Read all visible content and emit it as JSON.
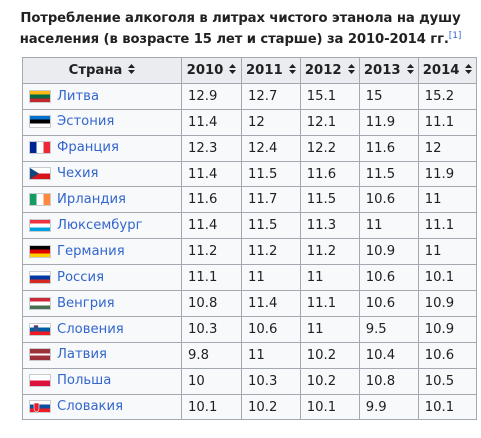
{
  "caption": {
    "title": "Потребление алкоголя в литрах чистого этанола на душу населения (в возрасте 15 лет и старше) за 2010-2014 гг.",
    "ref": "[1]"
  },
  "sort_icon": "sort-arrows-icon",
  "headers": [
    "Страна",
    "2010",
    "2011",
    "2012",
    "2013",
    "2014"
  ],
  "rows": [
    {
      "country": "Литва",
      "flag": "lithuania-flag-icon",
      "values": [
        "12.9",
        "12.7",
        "15.1",
        "15",
        "15.2"
      ]
    },
    {
      "country": "Эстония",
      "flag": "estonia-flag-icon",
      "values": [
        "11.4",
        "12",
        "12.1",
        "11.9",
        "11.1"
      ]
    },
    {
      "country": "Франция",
      "flag": "france-flag-icon",
      "values": [
        "12.3",
        "12.4",
        "12.2",
        "11.6",
        "12"
      ]
    },
    {
      "country": "Чехия",
      "flag": "czechia-flag-icon",
      "values": [
        "11.4",
        "11.5",
        "11.6",
        "11.5",
        "11.9"
      ]
    },
    {
      "country": "Ирландия",
      "flag": "ireland-flag-icon",
      "values": [
        "11.6",
        "11.7",
        "11.5",
        "10.6",
        "11"
      ]
    },
    {
      "country": "Люксембург",
      "flag": "luxembourg-flag-icon",
      "values": [
        "11.4",
        "11.5",
        "11.3",
        "11",
        "11.1"
      ]
    },
    {
      "country": "Германия",
      "flag": "germany-flag-icon",
      "values": [
        "11.2",
        "11.2",
        "11.2",
        "10.9",
        "11"
      ]
    },
    {
      "country": "Россия",
      "flag": "russia-flag-icon",
      "values": [
        "11.1",
        "11",
        "11",
        "10.6",
        "10.1"
      ]
    },
    {
      "country": "Венгрия",
      "flag": "hungary-flag-icon",
      "values": [
        "10.8",
        "11.4",
        "11.1",
        "10.6",
        "10.9"
      ]
    },
    {
      "country": "Словения",
      "flag": "slovenia-flag-icon",
      "values": [
        "10.3",
        "10.6",
        "11",
        "9.5",
        "10.9"
      ]
    },
    {
      "country": "Латвия",
      "flag": "latvia-flag-icon",
      "values": [
        "9.8",
        "11",
        "10.2",
        "10.4",
        "10.6"
      ]
    },
    {
      "country": "Польша",
      "flag": "poland-flag-icon",
      "values": [
        "10",
        "10.3",
        "10.2",
        "10.8",
        "10.5"
      ]
    },
    {
      "country": "Словакия",
      "flag": "slovakia-flag-icon",
      "values": [
        "10.1",
        "10.2",
        "10.1",
        "9.9",
        "10.1"
      ]
    }
  ],
  "colors": {
    "link": "#3366cc",
    "header_bg": "#eaecf0",
    "cell_bg": "#f8f9fa",
    "border": "#a2a9b1"
  }
}
